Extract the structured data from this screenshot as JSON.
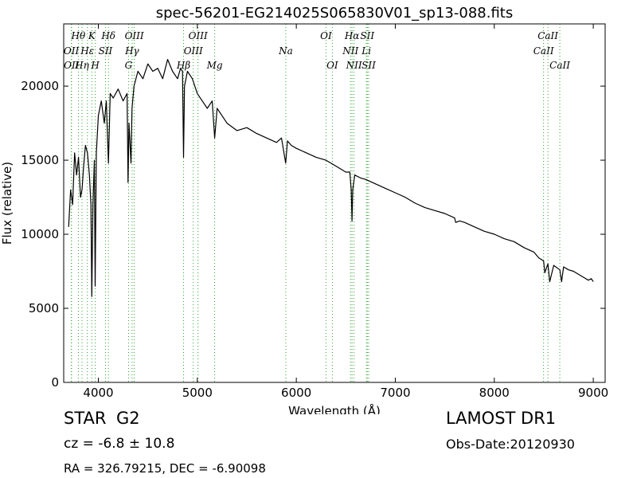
{
  "chart_data": {
    "type": "line",
    "title": "spec-56201-EG214025S065830V01_sp13-088.fits",
    "xlabel": "Wavelength (Å)",
    "ylabel": "Flux (relative)",
    "xlim": [
      3650,
      9120
    ],
    "ylim": [
      0,
      24200
    ],
    "xticks": [
      4000,
      5000,
      6000,
      7000,
      8000,
      9000
    ],
    "yticks": [
      0,
      5000,
      10000,
      15000,
      20000
    ],
    "line_color": "#000000",
    "marker_color": "#2ca02c",
    "series": [
      {
        "x": [
          3700,
          3720,
          3740,
          3760,
          3780,
          3800,
          3820,
          3835,
          3850,
          3870,
          3890,
          3910,
          3925,
          3934,
          3945,
          3960,
          3968,
          3980,
          4000,
          4030,
          4060,
          4080,
          4102,
          4120,
          4150,
          4200,
          4250,
          4290,
          4300,
          4310,
          4330,
          4340,
          4360,
          4400,
          4450,
          4500,
          4550,
          4600,
          4650,
          4700,
          4750,
          4800,
          4830,
          4850,
          4861,
          4870,
          4900,
          4950,
          5000,
          5050,
          5100,
          5150,
          5175,
          5200,
          5250,
          5300,
          5400,
          5500,
          5600,
          5700,
          5800,
          5850,
          5893,
          5910,
          5950,
          6000,
          6100,
          6200,
          6300,
          6400,
          6500,
          6540,
          6555,
          6563,
          6570,
          6590,
          6650,
          6700,
          6800,
          6900,
          7000,
          7100,
          7200,
          7300,
          7400,
          7500,
          7600,
          7610,
          7650,
          7700,
          7800,
          7900,
          8000,
          8100,
          8200,
          8300,
          8400,
          8450,
          8498,
          8510,
          8542,
          8560,
          8600,
          8662,
          8680,
          8700,
          8750,
          8800,
          8850,
          8900,
          8950,
          8980,
          9000
        ],
        "y": [
          10500,
          13000,
          12000,
          15500,
          14000,
          15200,
          12500,
          13000,
          14500,
          16000,
          15500,
          14000,
          12000,
          5800,
          12000,
          15000,
          6500,
          15500,
          18000,
          19000,
          17500,
          19000,
          14800,
          19500,
          19200,
          19800,
          19000,
          19500,
          13500,
          17500,
          14800,
          18500,
          20000,
          21000,
          20500,
          21500,
          21000,
          21200,
          20500,
          21800,
          21000,
          20500,
          21200,
          21000,
          15200,
          20000,
          21000,
          20500,
          19500,
          19000,
          18500,
          19000,
          16500,
          18500,
          18000,
          17500,
          17000,
          17200,
          16800,
          16500,
          16200,
          16500,
          14800,
          16300,
          16000,
          15800,
          15500,
          15200,
          15000,
          14600,
          14200,
          14200,
          13000,
          10900,
          13000,
          14000,
          13800,
          13700,
          13400,
          13100,
          12800,
          12500,
          12100,
          11800,
          11600,
          11400,
          11100,
          10800,
          10900,
          10800,
          10500,
          10200,
          10000,
          9700,
          9500,
          9100,
          8800,
          8400,
          8200,
          7400,
          8000,
          6800,
          7900,
          7600,
          6800,
          7800,
          7600,
          7500,
          7300,
          7100,
          6900,
          7000,
          6800
        ]
      }
    ],
    "line_markers": [
      {
        "label": "OII",
        "x": 3727,
        "row": 2
      },
      {
        "label": "Hθ",
        "x": 3798,
        "row": 1
      },
      {
        "label": "OII",
        "x": 3729,
        "row": 3
      },
      {
        "label": "Hη",
        "x": 3835,
        "row": 3
      },
      {
        "label": "Hε",
        "x": 3889,
        "row": 2
      },
      {
        "label": "K",
        "x": 3934,
        "row": 1
      },
      {
        "label": "H",
        "x": 3969,
        "row": 3
      },
      {
        "label": "SII",
        "x": 4072,
        "row": 2
      },
      {
        "label": "Hδ",
        "x": 4102,
        "row": 1
      },
      {
        "label": "G",
        "x": 4305,
        "row": 3
      },
      {
        "label": "Hγ",
        "x": 4341,
        "row": 2
      },
      {
        "label": "OIII",
        "x": 4363,
        "row": 1
      },
      {
        "label": "Hβ",
        "x": 4861,
        "row": 3
      },
      {
        "label": "OIII",
        "x": 4959,
        "row": 2
      },
      {
        "label": "OIII",
        "x": 5007,
        "row": 1
      },
      {
        "label": "Mg",
        "x": 5175,
        "row": 3
      },
      {
        "label": "Na",
        "x": 5894,
        "row": 2
      },
      {
        "label": "OI",
        "x": 6300,
        "row": 1
      },
      {
        "label": "OI",
        "x": 6364,
        "row": 3
      },
      {
        "label": "NII",
        "x": 6548,
        "row": 2
      },
      {
        "label": "NII",
        "x": 6583,
        "row": 3
      },
      {
        "label": "Hα",
        "x": 6563,
        "row": 1
      },
      {
        "label": "Li",
        "x": 6708,
        "row": 2
      },
      {
        "label": "SII",
        "x": 6717,
        "row": 1
      },
      {
        "label": "SII",
        "x": 6731,
        "row": 3
      },
      {
        "label": "CaII",
        "x": 8498,
        "row": 2
      },
      {
        "label": "CaII",
        "x": 8542,
        "row": 1
      },
      {
        "label": "CaII",
        "x": 8662,
        "row": 3
      }
    ]
  },
  "info": {
    "object_class": "STAR",
    "subclass": "G2",
    "survey": "LAMOST DR1",
    "cz": "cz = -6.8 ± 10.8",
    "obs_date": "Obs-Date:20120930",
    "coordinates": "RA = 326.79215, DEC = -6.90098"
  }
}
